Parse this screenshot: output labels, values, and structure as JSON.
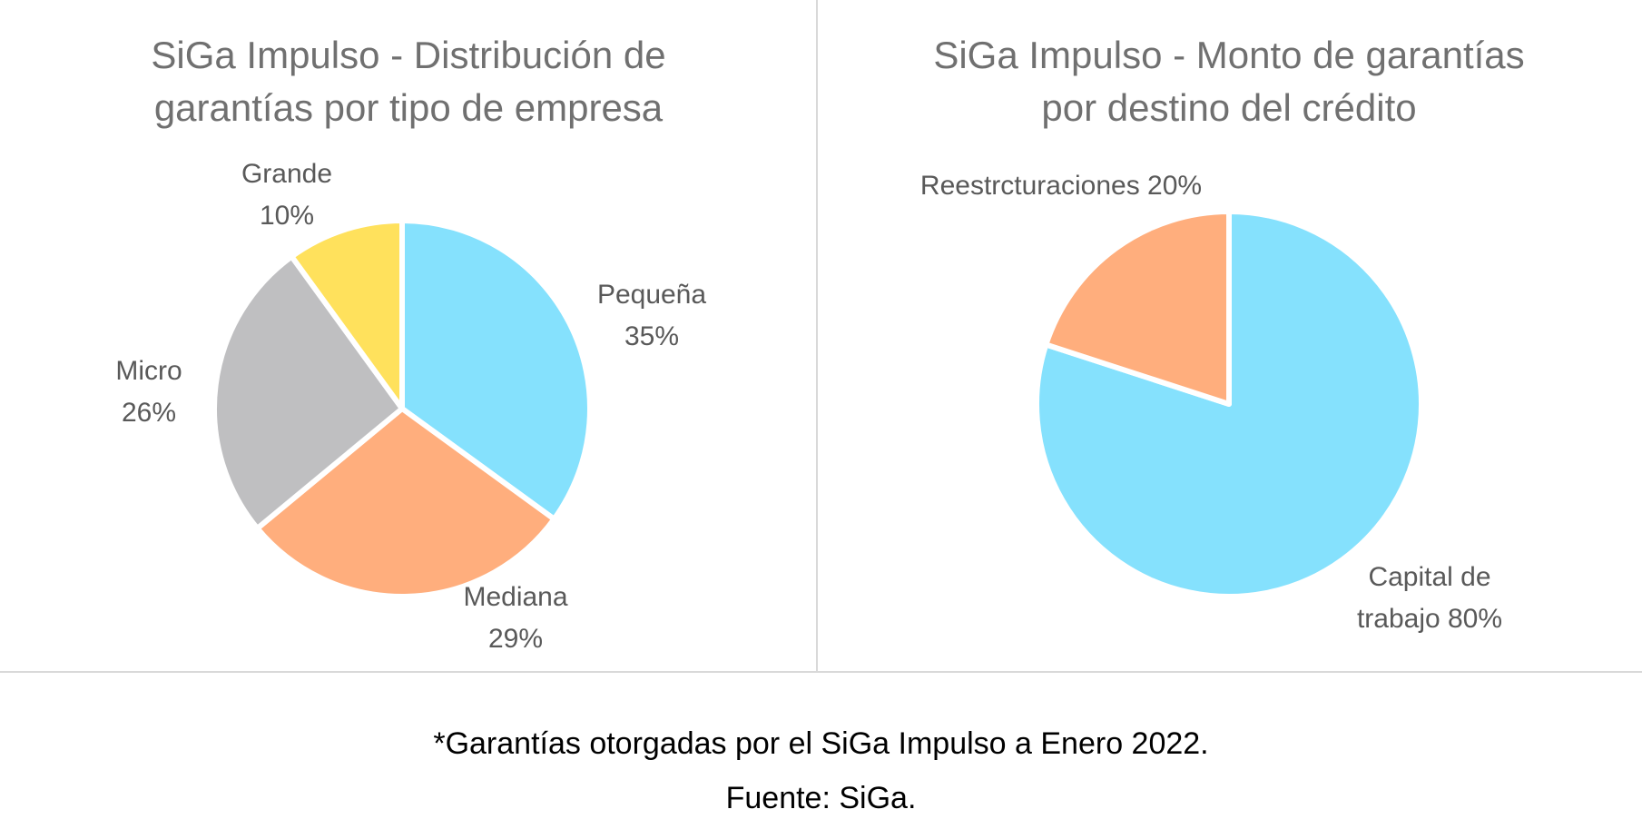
{
  "chart_data": [
    {
      "type": "pie",
      "title_lines": [
        "SiGa Impulso - Distribución de",
        "garantías por tipo de empresa"
      ],
      "title": "SiGa Impulso - Distribución de garantías por tipo de empresa",
      "categories": [
        "Pequeña",
        "Mediana",
        "Micro",
        "Grande"
      ],
      "values": [
        35,
        29,
        26,
        10
      ],
      "labels": [
        [
          "Pequeña",
          "35%"
        ],
        [
          "Mediana",
          "29%"
        ],
        [
          "Micro",
          "26%"
        ],
        [
          "Grande",
          "10%"
        ]
      ],
      "colors": [
        "#85E1FD",
        "#FFAE7D",
        "#BFBFC1",
        "#FFE15C"
      ],
      "start": "12 o'clock",
      "direction": "clockwise"
    },
    {
      "type": "pie",
      "title_lines": [
        "SiGa Impulso - Monto de garantías",
        "por destino del crédito"
      ],
      "title": "SiGa Impulso - Monto de garantías por destino del crédito",
      "categories": [
        "Capital de trabajo",
        "Reestrcturaciones"
      ],
      "values": [
        80,
        20
      ],
      "labels": [
        [
          "Capital de",
          "trabajo 80%"
        ],
        [
          "Reestrcturaciones 20%"
        ]
      ],
      "colors": [
        "#85E1FD",
        "#FFAE7D"
      ],
      "start": "12 o'clock",
      "direction": "clockwise"
    }
  ],
  "footer": {
    "note": "*Garantías otorgadas por el SiGa Impulso a Enero 2022.",
    "source": "Fuente: SiGa."
  }
}
